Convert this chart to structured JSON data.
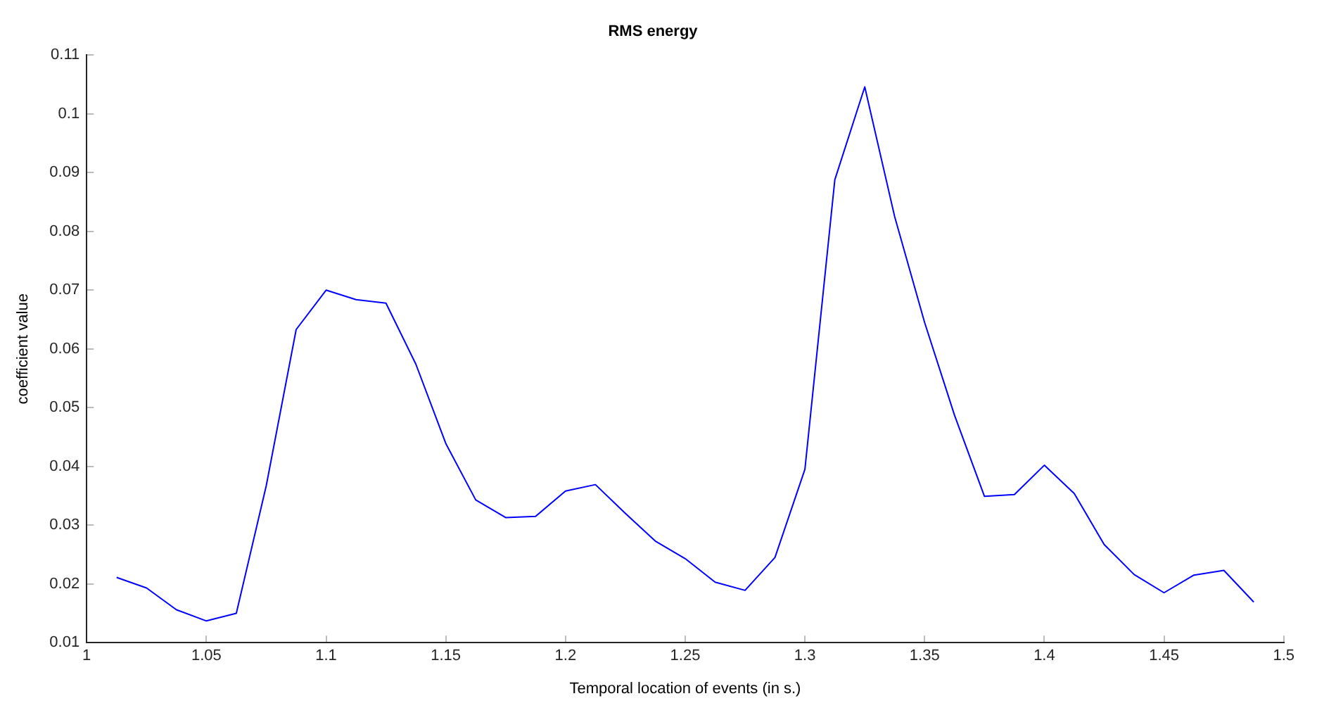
{
  "chart_data": {
    "type": "line",
    "title": "RMS energy",
    "xlabel": "Temporal location of events (in s.)",
    "ylabel": "coefficient value",
    "x": [
      1.0125,
      1.025,
      1.0375,
      1.05,
      1.0625,
      1.075,
      1.0875,
      1.1,
      1.1125,
      1.125,
      1.1375,
      1.15,
      1.1625,
      1.175,
      1.1875,
      1.2,
      1.2125,
      1.225,
      1.2375,
      1.25,
      1.2625,
      1.275,
      1.2875,
      1.3,
      1.3125,
      1.325,
      1.3375,
      1.35,
      1.3625,
      1.375,
      1.3875,
      1.4,
      1.4125,
      1.425,
      1.4375,
      1.45,
      1.4625,
      1.475,
      1.4875
    ],
    "series": [
      {
        "color": "#0000ff",
        "values": [
          0.0211,
          0.0193,
          0.0156,
          0.0137,
          0.015,
          0.0367,
          0.0633,
          0.07,
          0.0684,
          0.0678,
          0.0574,
          0.0439,
          0.0343,
          0.0313,
          0.0315,
          0.0358,
          0.0369,
          0.032,
          0.0273,
          0.0243,
          0.0203,
          0.0189,
          0.0245,
          0.0395,
          0.0888,
          0.1046,
          0.0825,
          0.0645,
          0.0487,
          0.0349,
          0.0352,
          0.0402,
          0.0354,
          0.0267,
          0.0216,
          0.0185,
          0.0215,
          0.0223,
          0.0169
        ]
      }
    ],
    "xlim": [
      1,
      1.5
    ],
    "xticks": [
      1,
      1.05,
      1.1,
      1.15,
      1.2,
      1.25,
      1.3,
      1.35,
      1.4,
      1.45,
      1.5
    ],
    "ylim": [
      0.01,
      0.11
    ],
    "yticks": [
      0.01,
      0.02,
      0.03,
      0.04,
      0.05,
      0.06,
      0.07,
      0.08,
      0.09,
      0.1,
      0.11
    ],
    "grid": false,
    "legend": false,
    "marker": "none",
    "line_style": "solid"
  }
}
